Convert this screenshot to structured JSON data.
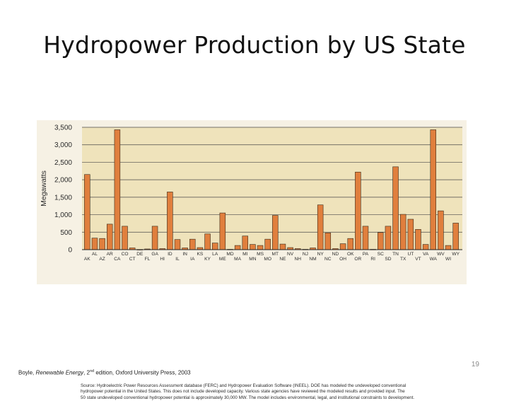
{
  "slide": {
    "title": "Hydropower Production by US State",
    "page_number": "19",
    "citation": {
      "prefix": "Boyle, ",
      "book": "Renewable Energy",
      "edition_num": ", 2",
      "edition_sup": "nd",
      "suffix": " edition, Oxford University Press, 2003"
    }
  },
  "colors": {
    "plot_background": "#efe3bb",
    "bar_fill": "#e07f3d",
    "bar_stroke": "#3a2a1a",
    "gridline": "#4a4a4a",
    "figure_background": "#f6f1e4"
  },
  "chart_data": {
    "type": "bar",
    "ylabel": "Megawatts",
    "ylim": [
      0,
      3500
    ],
    "yticks": [
      "0",
      "500",
      "1,000",
      "1,500",
      "2,000",
      "2,500",
      "3,000",
      "3,500"
    ],
    "grid": true,
    "categories": [
      "AK",
      "AL",
      "AZ",
      "AR",
      "CA",
      "CO",
      "CT",
      "DE",
      "FL",
      "GA",
      "HI",
      "ID",
      "IL",
      "IN",
      "IA",
      "KS",
      "KY",
      "LA",
      "ME",
      "MD",
      "MA",
      "MI",
      "MN",
      "MS",
      "MO",
      "MT",
      "NE",
      "NV",
      "NH",
      "NJ",
      "NM",
      "NY",
      "NC",
      "ND",
      "OH",
      "OK",
      "OR",
      "PA",
      "RI",
      "SC",
      "SD",
      "TN",
      "TX",
      "UT",
      "VT",
      "VA",
      "WA",
      "WV",
      "WI",
      "WY"
    ],
    "values": [
      2150,
      330,
      320,
      730,
      3430,
      670,
      50,
      5,
      20,
      670,
      30,
      1650,
      290,
      50,
      300,
      60,
      450,
      190,
      1050,
      10,
      120,
      390,
      150,
      120,
      300,
      980,
      160,
      60,
      30,
      10,
      50,
      1280,
      480,
      30,
      170,
      320,
      2220,
      670,
      10,
      490,
      670,
      2370,
      1010,
      870,
      580,
      150,
      3430,
      1110,
      120,
      760
    ],
    "caption_lines": [
      "Source: Hydroelectric Power Resources Assessment database (FERC) and Hydropower Evaluation Software (INEEL). DOE has modeled the undeveloped conventional",
      "hydropower potential in the United States. This does not include developed capacity. Various state agencies have reviewed the modeled results and provided input. The",
      "50 state undeveloped conventional hydropower potential is approximately 30,000 MW. The model includes environmental, legal, and institutional constraints to development."
    ]
  }
}
